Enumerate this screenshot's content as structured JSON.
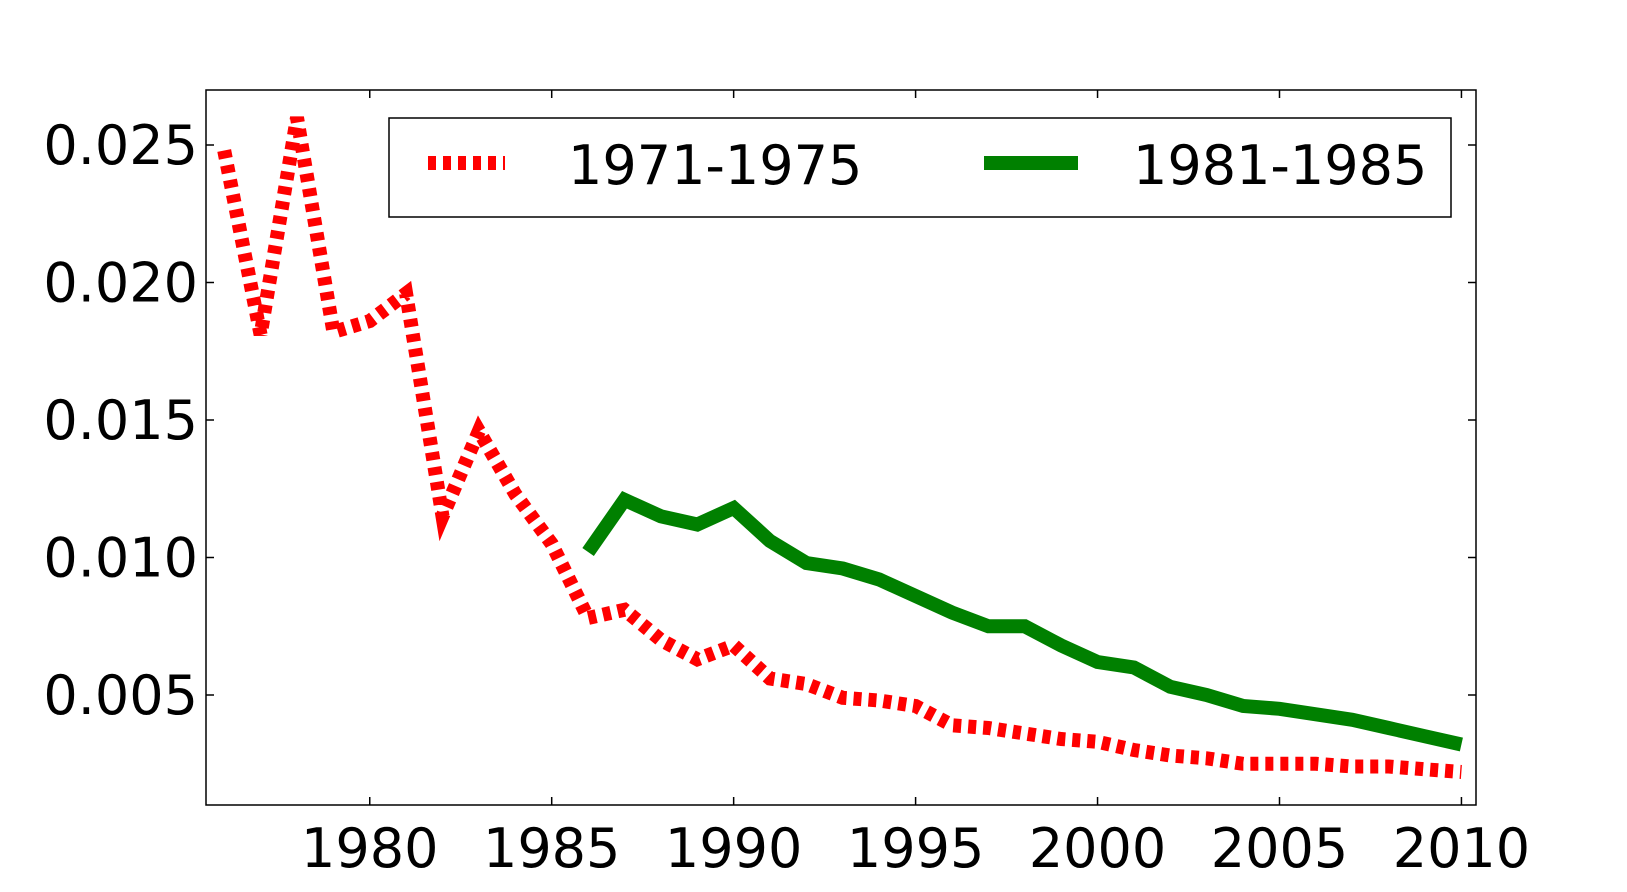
{
  "chart_data": {
    "type": "line",
    "title": "",
    "xlabel": "",
    "ylabel": "",
    "xlim": [
      1975.5,
      2010.4
    ],
    "ylim": [
      0.001,
      0.027
    ],
    "xticks": [
      1980,
      1985,
      1990,
      1995,
      2000,
      2005,
      2010
    ],
    "xtick_labels": [
      "1980",
      "1985",
      "1990",
      "1995",
      "2000",
      "2005",
      "2010"
    ],
    "yticks": [
      0.005,
      0.01,
      0.015,
      0.02,
      0.025
    ],
    "ytick_labels": [
      "0.005",
      "0.010",
      "0.015",
      "0.020",
      "0.025"
    ],
    "grid": false,
    "legend_position": "top-right",
    "series": [
      {
        "name": "1971-1975",
        "color": "#ff0000",
        "style": "dotted",
        "x": [
          1976,
          1977,
          1978,
          1979,
          1980,
          1981,
          1982,
          1983,
          1984,
          1985,
          1986,
          1987,
          1988,
          1989,
          1990,
          1991,
          1992,
          1993,
          1994,
          1995,
          1996,
          1997,
          1998,
          1999,
          2000,
          2001,
          2002,
          2003,
          2004,
          2005,
          2006,
          2007,
          2008,
          2009,
          2010
        ],
        "values": [
          0.0248,
          0.0181,
          0.026,
          0.0182,
          0.0186,
          0.0196,
          0.0115,
          0.0146,
          0.0123,
          0.0105,
          0.0078,
          0.0081,
          0.007,
          0.0063,
          0.0068,
          0.0056,
          0.0054,
          0.0049,
          0.0048,
          0.0046,
          0.0039,
          0.0038,
          0.0036,
          0.0034,
          0.0033,
          0.003,
          0.0028,
          0.0027,
          0.0025,
          0.0025,
          0.0025,
          0.0024,
          0.0024,
          0.0023,
          0.0022
        ]
      },
      {
        "name": "1981-1985",
        "color": "#008000",
        "style": "solid",
        "x": [
          1986,
          1987,
          1988,
          1989,
          1990,
          1991,
          1992,
          1993,
          1994,
          1995,
          1996,
          1997,
          1998,
          1999,
          2000,
          2001,
          2002,
          2003,
          2004,
          2005,
          2006,
          2007,
          2008,
          2009,
          2010
        ],
        "values": [
          0.0102,
          0.0121,
          0.0115,
          0.0112,
          0.0118,
          0.0106,
          0.0098,
          0.0096,
          0.0092,
          0.0086,
          0.008,
          0.0075,
          0.0075,
          0.0068,
          0.0062,
          0.006,
          0.0053,
          0.005,
          0.0046,
          0.0045,
          0.0043,
          0.0041,
          0.0038,
          0.0035,
          0.0032
        ]
      }
    ]
  }
}
